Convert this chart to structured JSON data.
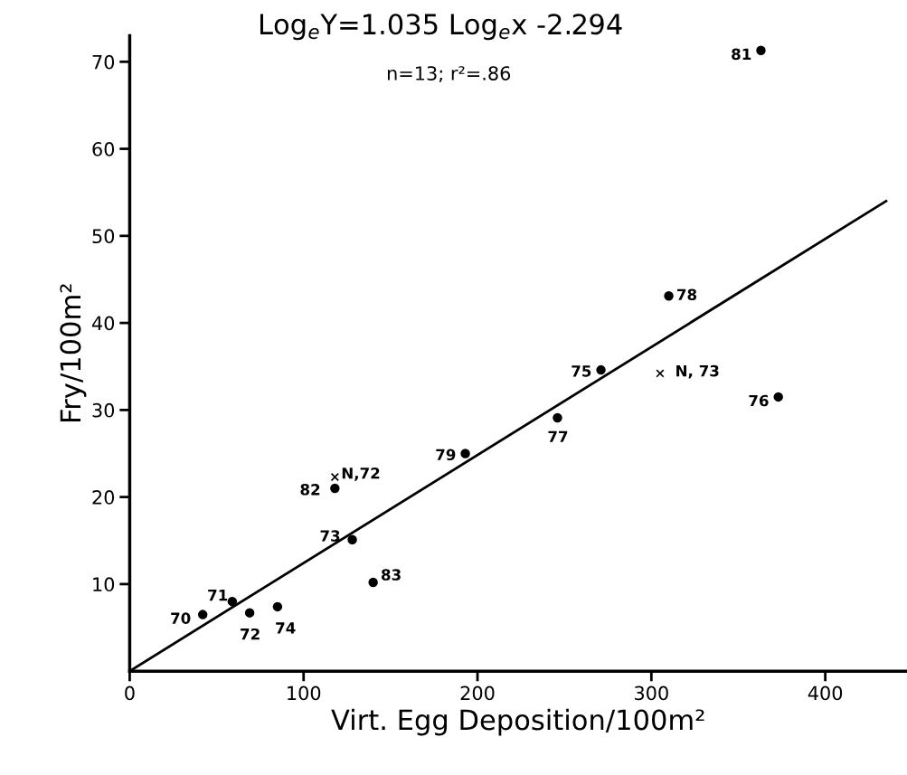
{
  "chart_data": {
    "type": "scatter",
    "title": "Log$_{e}$Y=1.035 Log$_{e}$x -2.294",
    "xlabel": "Virt. Egg Deposition/100m²",
    "ylabel": "Fry/100m²",
    "series": [
      {
        "color": "#000000",
        "marker": "circle",
        "x": [
          42,
          59,
          69,
          85,
          140,
          128,
          118,
          193,
          246,
          271,
          310,
          373,
          363
        ],
        "values": [
          6.5,
          8.0,
          6.7,
          7.4,
          10.2,
          15.1,
          21.0,
          25.0,
          29.1,
          34.6,
          43.1,
          31.5,
          71.3
        ]
      },
      {
        "color": "#000000",
        "marker": "cross",
        "x": [
          118,
          305
        ],
        "values": [
          22.3,
          34.2
        ]
      },
      {
        "type": "line",
        "color": "#000000",
        "x": [
          0,
          435
        ],
        "values": [
          0,
          54
        ]
      }
    ],
    "annotations": [
      "n=13; r²=.86",
      {
        "text": "81",
        "x": 363,
        "y": 71.3
      },
      {
        "text": "78",
        "x": 310,
        "y": 43.1
      },
      {
        "text": "75",
        "x": 271,
        "y": 34.6
      },
      {
        "text": "76",
        "x": 373,
        "y": 31.5
      },
      {
        "text": "77",
        "x": 246,
        "y": 29.1
      },
      {
        "text": "79",
        "x": 193,
        "y": 25.0
      },
      {
        "text": "82",
        "x": 118,
        "y": 21.0
      },
      {
        "text": "73",
        "x": 128,
        "y": 15.1
      },
      {
        "text": "83",
        "x": 140,
        "y": 10.2
      },
      {
        "text": "70",
        "x": 42,
        "y": 6.5
      },
      {
        "text": "71",
        "x": 59,
        "y": 8.0
      },
      {
        "text": "72",
        "x": 69,
        "y": 6.7
      },
      {
        "text": "74",
        "x": 85,
        "y": 7.4
      },
      {
        "text": "N, 73",
        "x": 305,
        "y": 34.2
      },
      {
        "text": "N,72",
        "x": 118,
        "y": 22.3
      }
    ],
    "xlim": [
      0,
      447
    ],
    "ylim": [
      0,
      73
    ],
    "xticks": [
      0,
      100,
      200,
      300,
      400
    ],
    "yticks": [
      10,
      20,
      30,
      40,
      50,
      60,
      70
    ],
    "grid": false,
    "legend": false
  }
}
